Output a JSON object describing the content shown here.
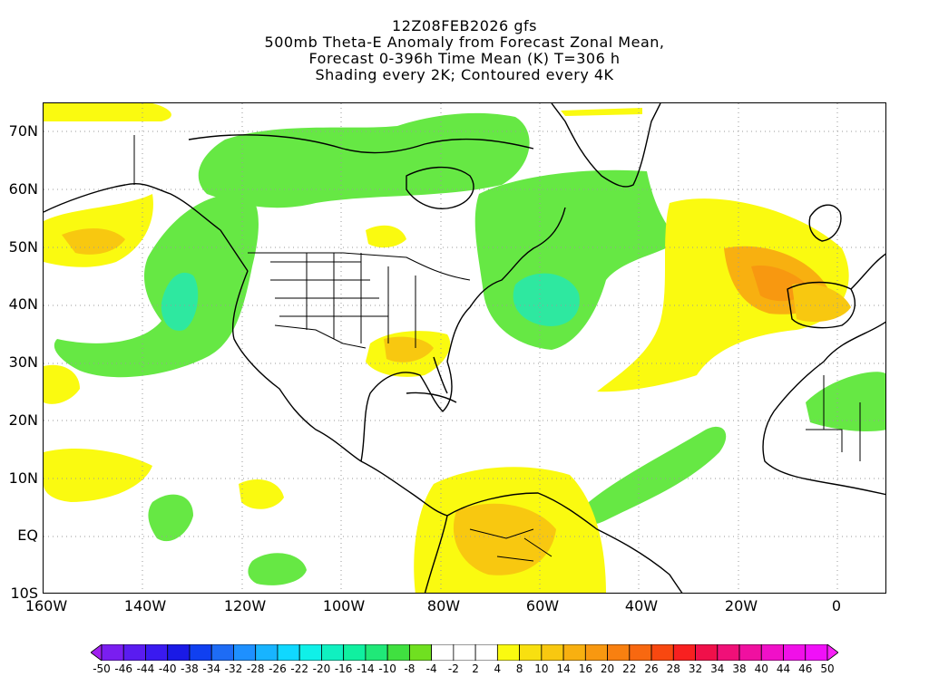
{
  "title": {
    "line1": "12Z08FEB2026 gfs",
    "line2": "500mb Theta-E Anomaly from Forecast Zonal Mean,",
    "line3": "Forecast 0-396h Time Mean (K) T=306 h",
    "line4": "Shading every 2K; Contoured every 4K"
  },
  "map": {
    "lon_range": [
      -160,
      10
    ],
    "lat_range": [
      -10,
      75
    ],
    "lat_ticks": [
      "70N",
      "60N",
      "50N",
      "40N",
      "30N",
      "20N",
      "10N",
      "EQ",
      "10S"
    ],
    "lon_ticks": [
      "160W",
      "140W",
      "120W",
      "100W",
      "80W",
      "60W",
      "40W",
      "20W",
      "0"
    ],
    "gridlines": "dotted"
  },
  "colorbar": {
    "labels": [
      "-50",
      "-46",
      "-44",
      "-40",
      "-38",
      "-34",
      "-32",
      "-28",
      "-26",
      "-22",
      "-20",
      "-16",
      "-14",
      "-10",
      "-8",
      "-4",
      "-2",
      "2",
      "4",
      "8",
      "10",
      "14",
      "16",
      "20",
      "22",
      "26",
      "28",
      "32",
      "34",
      "38",
      "40",
      "44",
      "46",
      "50"
    ],
    "colors": [
      "#a020f0",
      "#7a1ef0",
      "#5a1cf0",
      "#3a1af0",
      "#1a1ae6",
      "#1040f0",
      "#1e6cf5",
      "#1e90ff",
      "#18b4ff",
      "#10d8ff",
      "#10f0e8",
      "#10f0c0",
      "#10f0a0",
      "#20e878",
      "#40e040",
      "#70e020",
      "#ffffff",
      "#ffffff",
      "#ffffff",
      "#fafa10",
      "#f8e010",
      "#f8c810",
      "#f8b010",
      "#f89810",
      "#f88010",
      "#f86810",
      "#f84810",
      "#f82020",
      "#f0104a",
      "#f01078",
      "#f010a0",
      "#f010c8",
      "#f010e8",
      "#f010f8",
      "#f820f8"
    ]
  }
}
